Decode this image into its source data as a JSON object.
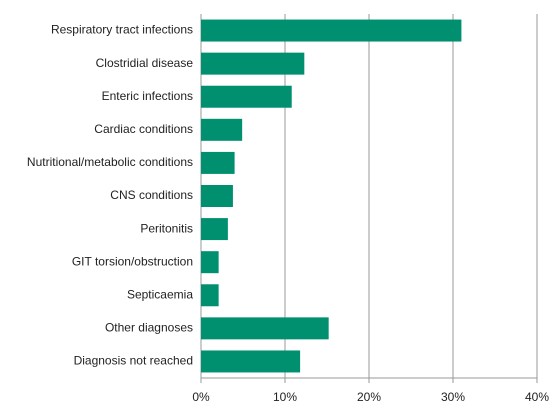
{
  "chart_data": {
    "type": "bar",
    "orientation": "horizontal",
    "categories": [
      "Respiratory tract infections",
      "Clostridial disease",
      "Enteric infections",
      "Cardiac conditions",
      "Nutritional/metabolic conditions",
      "CNS conditions",
      "Peritonitis",
      "GIT torsion/obstruction",
      "Septicaemia",
      "Other diagnoses",
      "Diagnosis not reached"
    ],
    "values": [
      31.0,
      12.3,
      10.8,
      4.9,
      4.0,
      3.8,
      3.2,
      2.1,
      2.1,
      15.2,
      11.8
    ],
    "color": "#00906f",
    "xlim": [
      0,
      40
    ],
    "xticks": [
      {
        "value": 0,
        "label": "0%"
      },
      {
        "value": 10,
        "label": "10%"
      },
      {
        "value": 20,
        "label": "20%"
      },
      {
        "value": 30,
        "label": "30%"
      },
      {
        "value": 40,
        "label": "40%"
      }
    ],
    "grid": true
  }
}
